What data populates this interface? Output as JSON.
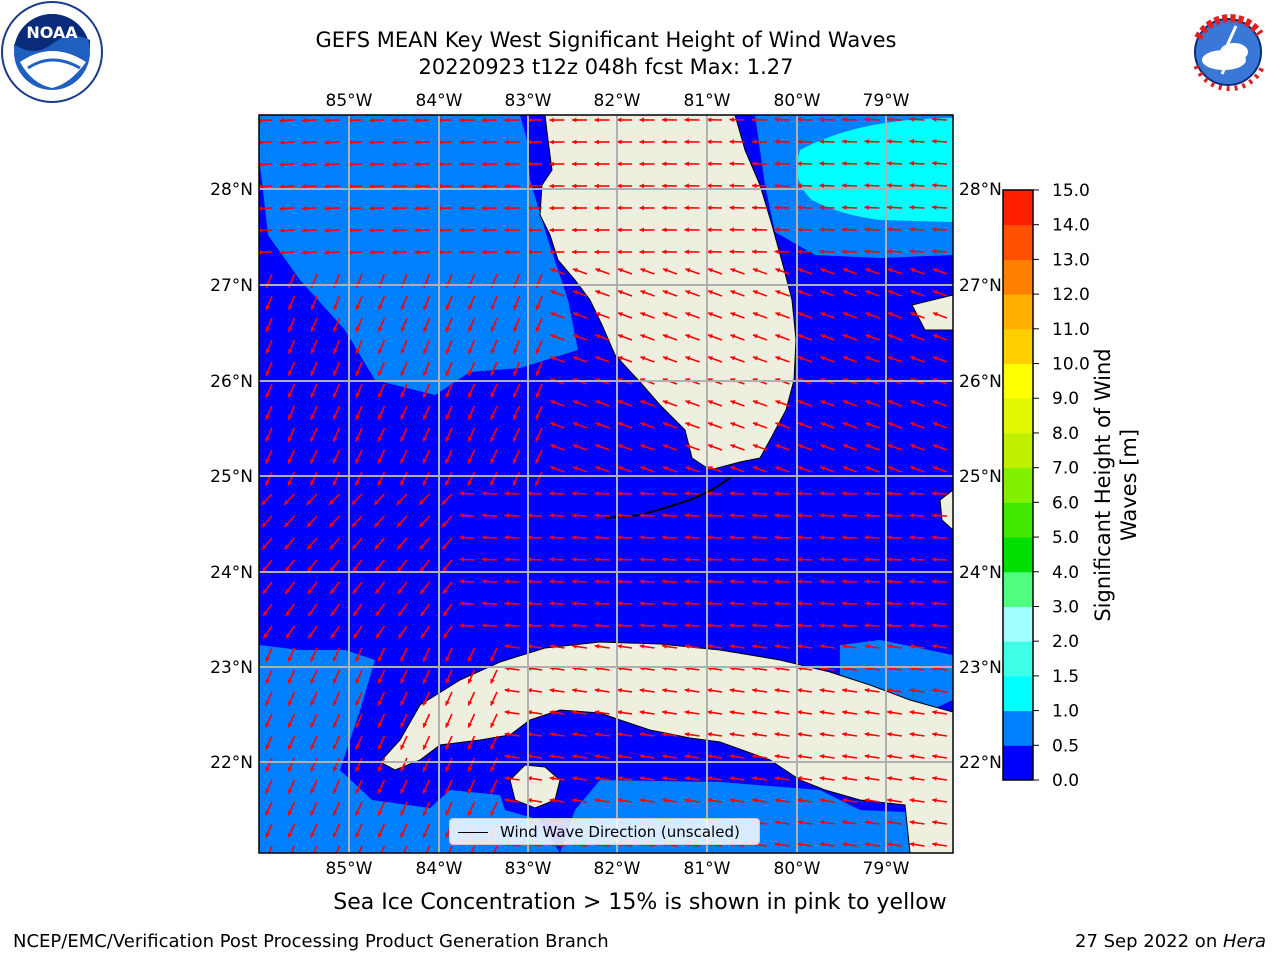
{
  "title_line1": "GEFS MEAN Key West Significant Height of Wind Waves",
  "title_line2": "20220923 t12z 048h fcst   Max: 1.27",
  "longitudes": [
    "85°W",
    "84°W",
    "83°W",
    "82°W",
    "81°W",
    "80°W",
    "79°W"
  ],
  "latitudes": [
    "28°N",
    "27°N",
    "26°N",
    "25°N",
    "24°N",
    "23°N",
    "22°N"
  ],
  "legend_label": "Wind Wave Direction (unscaled)",
  "colorbar": {
    "title_line1": "Significant Height of Wind",
    "title_line2": "Waves [m]",
    "ticks": [
      "0.0",
      "0.5",
      "1.0",
      "1.5",
      "2.0",
      "3.0",
      "4.0",
      "5.0",
      "6.0",
      "7.0",
      "8.0",
      "9.0",
      "10.0",
      "11.0",
      "12.0",
      "13.0",
      "14.0",
      "15.0"
    ],
    "colors": [
      "#0000ff",
      "#0080ff",
      "#00ffff",
      "#40ffe8",
      "#a0ffff",
      "#50ff80",
      "#00e000",
      "#40e800",
      "#80f000",
      "#c0f000",
      "#e0f800",
      "#ffff00",
      "#ffd000",
      "#ffb000",
      "#ff8000",
      "#ff5000",
      "#ff2000"
    ]
  },
  "map_colors": {
    "ocean": "#0000ff",
    "ocean_light": "#0080ff",
    "cyan": "#00ffff",
    "land": "#efefdf",
    "arrow": "#ff0000"
  },
  "footnote": "Sea Ice Concentration > 15% is shown in pink to yellow",
  "footer_left": "NCEP/EMC/Verification Post Processing Product Generation Branch",
  "footer_date": "27 Sep 2022 on ",
  "footer_machine": "Hera",
  "logos": {
    "left": "NOAA",
    "right": "NATIONAL WEATHER SERVICE"
  }
}
